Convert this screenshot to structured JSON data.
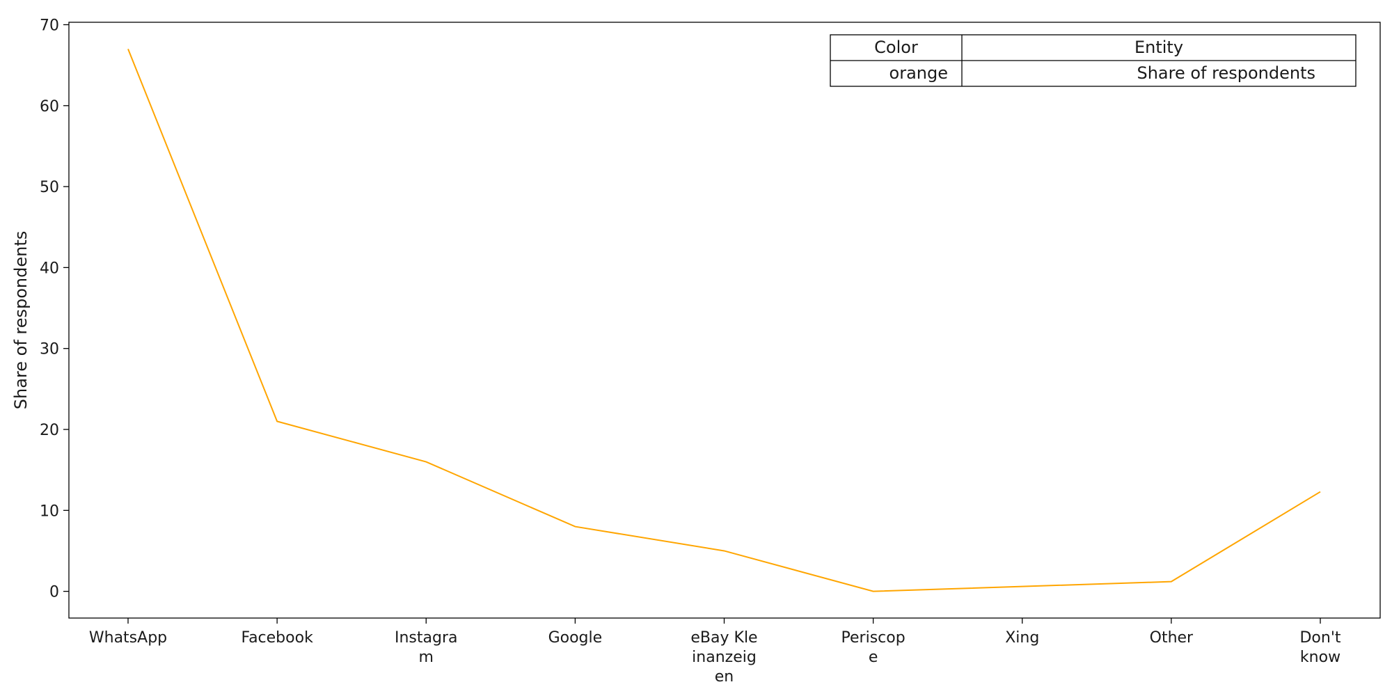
{
  "chart_data": {
    "type": "line",
    "categories": [
      "WhatsApp",
      "Facebook",
      "Instagram",
      "Google",
      "eBay Kleinanzeigen",
      "Periscope",
      "Xing",
      "Other",
      "Don't know"
    ],
    "category_labels": [
      [
        "WhatsApp"
      ],
      [
        "Facebook"
      ],
      [
        "Instagra",
        "m"
      ],
      [
        "Google"
      ],
      [
        "eBay Kle",
        "inanzeig",
        "en"
      ],
      [
        "Periscop",
        "e"
      ],
      [
        "Xing"
      ],
      [
        "Other"
      ],
      [
        "Don't",
        "know"
      ]
    ],
    "series": [
      {
        "name": "Share of respondents",
        "color": "#FFA500",
        "values": [
          67,
          21,
          16,
          8,
          5,
          0,
          0.6,
          1.2,
          12.3
        ]
      }
    ],
    "ylabel": "Share of respondents",
    "xlabel": "",
    "ylim": [
      -3.3,
      70.3
    ],
    "yticks": [
      0,
      10,
      20,
      30,
      40,
      50,
      60,
      70
    ],
    "grid": false,
    "legend": {
      "placement": "top-right",
      "header": [
        "Color",
        "Entity"
      ],
      "rows": [
        [
          "orange",
          "Share of respondents"
        ]
      ]
    }
  }
}
